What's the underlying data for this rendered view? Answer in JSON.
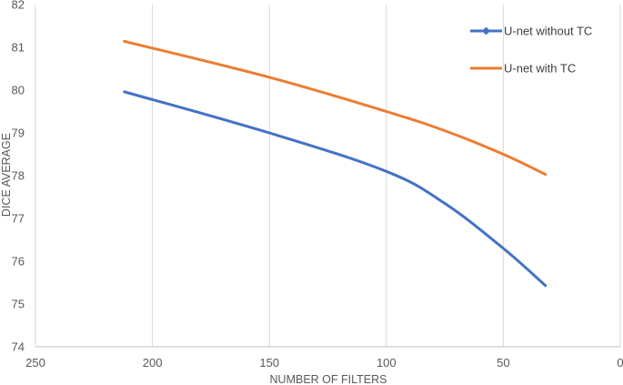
{
  "chart_data": {
    "type": "line",
    "title": "",
    "xlabel": "NUMBER OF FILTERS",
    "ylabel": "DICE AVERAGE",
    "xlim": [
      250,
      0
    ],
    "x_reversed": true,
    "ylim": [
      74,
      82
    ],
    "x_ticks": [
      250,
      200,
      150,
      100,
      50,
      0
    ],
    "y_ticks": [
      74,
      75,
      76,
      77,
      78,
      79,
      80,
      81,
      82
    ],
    "grid": "vertical",
    "legend_position": "top-right",
    "series": [
      {
        "name": "U-net without TC",
        "color": "#4472c4",
        "marker": "diamond-in-legend",
        "x": [
          212,
          150,
          100,
          75,
          50,
          32
        ],
        "y": [
          79.96,
          79.0,
          78.1,
          77.35,
          76.3,
          75.43
        ]
      },
      {
        "name": "U-net with TC",
        "color": "#ed7d31",
        "marker": "none",
        "x": [
          212,
          150,
          100,
          75,
          50,
          32
        ],
        "y": [
          81.14,
          80.3,
          79.5,
          79.05,
          78.5,
          78.03
        ]
      }
    ]
  }
}
